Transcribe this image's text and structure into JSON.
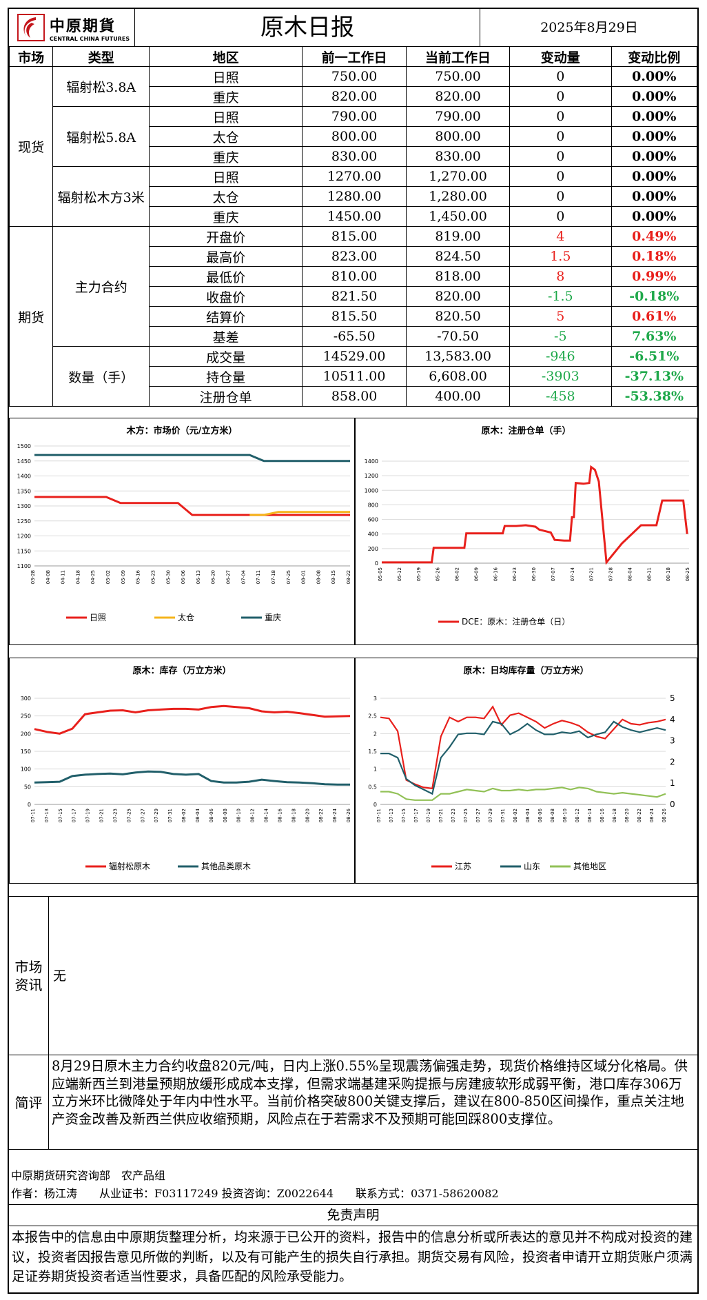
{
  "header": {
    "logo_cn": "中原期貨",
    "logo_en": "CENTRAL CHINA FUTURES",
    "title": "原木日报",
    "date": "2025年8月29日"
  },
  "columns": [
    "市场",
    "类型",
    "地区",
    "前一工作日",
    "当前工作日",
    "变动量",
    "变动比例"
  ],
  "spot": {
    "market": "现货",
    "groups": [
      {
        "type": "辐射松3.8A",
        "rows": [
          [
            "日照",
            "750.00",
            "750.00",
            "0",
            "0.00%"
          ],
          [
            "重庆",
            "820.00",
            "820.00",
            "0",
            "0.00%"
          ]
        ]
      },
      {
        "type": "辐射松5.8A",
        "rows": [
          [
            "日照",
            "790.00",
            "790.00",
            "0",
            "0.00%"
          ],
          [
            "太仓",
            "800.00",
            "800.00",
            "0",
            "0.00%"
          ],
          [
            "重庆",
            "830.00",
            "830.00",
            "0",
            "0.00%"
          ]
        ]
      },
      {
        "type": "辐射松木方3米",
        "rows": [
          [
            "日照",
            "1270.00",
            "1,270.00",
            "0",
            "0.00%"
          ],
          [
            "太仓",
            "1280.00",
            "1,280.00",
            "0",
            "0.00%"
          ],
          [
            "重庆",
            "1450.00",
            "1,450.00",
            "0",
            "0.00%"
          ]
        ]
      }
    ]
  },
  "futures": {
    "market": "期货",
    "groups": [
      {
        "type": "主力合约",
        "rows": [
          [
            "开盘价",
            "815.00",
            "819.00",
            "4",
            "0.49%"
          ],
          [
            "最高价",
            "823.00",
            "824.50",
            "1.5",
            "0.18%"
          ],
          [
            "最低价",
            "810.00",
            "818.00",
            "8",
            "0.99%"
          ],
          [
            "收盘价",
            "821.50",
            "820.00",
            "-1.5",
            "-0.18%"
          ],
          [
            "结算价",
            "815.50",
            "820.50",
            "5",
            "0.61%"
          ],
          [
            "基差",
            "-65.50",
            "-70.50",
            "-5",
            "7.63%"
          ]
        ]
      },
      {
        "type": "数量（手）",
        "rows": [
          [
            "成交量",
            "14529.00",
            "13,583.00",
            "-946",
            "-6.51%"
          ],
          [
            "持仓量",
            "10511.00",
            "6,608.00",
            "-3903",
            "-37.13%"
          ],
          [
            "注册仓单",
            "858.00",
            "400.00",
            "-458",
            "-53.38%"
          ]
        ]
      }
    ]
  },
  "colors": {
    "red": "#e8201c",
    "green": "#1ea84a",
    "teal": "#215f6a",
    "orange": "#f5b41c",
    "lightgreen": "#92c157"
  },
  "charts": [
    {
      "title": "木方：市场价（元/立方米）",
      "type": "line",
      "yticks": [
        "1500",
        "1450",
        "1400",
        "1350",
        "1300",
        "1250",
        "1200",
        "1150",
        "1100"
      ],
      "ylim": [
        1100,
        1500
      ],
      "xticks": [
        "03-28",
        "04-08",
        "04-11",
        "04-18",
        "04-25",
        "05-02",
        "05-09",
        "05-16",
        "05-23",
        "05-30",
        "06-06",
        "06-13",
        "06-20",
        "06-27",
        "07-04",
        "07-11",
        "07-18",
        "07-25",
        "08-01",
        "08-08",
        "08-15",
        "08-22"
      ],
      "series": [
        {
          "name": "日照",
          "color": "#e8201c",
          "values": [
            1330,
            1330,
            1330,
            1330,
            1330,
            1330,
            1310,
            1310,
            1310,
            1310,
            1310,
            1270,
            1270,
            1270,
            1270,
            1270,
            1270,
            1270,
            1270,
            1270,
            1270,
            1270,
            1270
          ]
        },
        {
          "name": "太仓",
          "color": "#f5b41c",
          "values": [
            null,
            null,
            null,
            null,
            null,
            null,
            null,
            null,
            null,
            null,
            null,
            null,
            null,
            null,
            null,
            1270,
            1270,
            1280,
            1280,
            1280,
            1280,
            1280,
            1280
          ]
        },
        {
          "name": "重庆",
          "color": "#215f6a",
          "values": [
            1470,
            1470,
            1470,
            1470,
            1470,
            1470,
            1470,
            1470,
            1470,
            1470,
            1470,
            1470,
            1470,
            1470,
            1470,
            1470,
            1450,
            1450,
            1450,
            1450,
            1450,
            1450,
            1450
          ]
        }
      ]
    },
    {
      "title": "原木：注册仓单（手）",
      "type": "line",
      "yticks": [
        "1400",
        "1200",
        "1000",
        "800",
        "600",
        "400",
        "200",
        "0"
      ],
      "ylim": [
        0,
        1400
      ],
      "xticks": [
        "05-05",
        "05-12",
        "05-19",
        "05-26",
        "06-02",
        "06-09",
        "06-16",
        "06-23",
        "06-30",
        "07-07",
        "07-14",
        "07-21",
        "07-28",
        "08-04",
        "08-11",
        "08-18",
        "08-25"
      ],
      "series": [
        {
          "name": "DCE：原木：注册仓单（日）",
          "color": "#e8201c",
          "values": [
            [
              0,
              10
            ],
            [
              1,
              10
            ],
            [
              2,
              10
            ],
            [
              2.6,
              10
            ],
            [
              2.7,
              210
            ],
            [
              3,
              210
            ],
            [
              4,
              210
            ],
            [
              4.3,
              210
            ],
            [
              4.4,
              410
            ],
            [
              5,
              410
            ],
            [
              6,
              410
            ],
            [
              6.3,
              410
            ],
            [
              6.4,
              510
            ],
            [
              7,
              510
            ],
            [
              7.5,
              520
            ],
            [
              8,
              500
            ],
            [
              8.2,
              460
            ],
            [
              8.8,
              420
            ],
            [
              9,
              320
            ],
            [
              9.5,
              310
            ],
            [
              9.8,
              310
            ],
            [
              9.9,
              630
            ],
            [
              10,
              630
            ],
            [
              10.1,
              1100
            ],
            [
              10.5,
              1090
            ],
            [
              10.8,
              1100
            ],
            [
              10.9,
              1320
            ],
            [
              11.1,
              1280
            ],
            [
              11.3,
              1120
            ],
            [
              11.7,
              10
            ],
            [
              12.5,
              270
            ],
            [
              13.5,
              520
            ],
            [
              14,
              520
            ],
            [
              14.3,
              520
            ],
            [
              14.6,
              860
            ],
            [
              15,
              860
            ],
            [
              15.7,
              860
            ],
            [
              15.9,
              400
            ]
          ]
        }
      ]
    },
    {
      "title": "原木：库存（万立方米）",
      "type": "line",
      "yticks": [
        "300",
        "250",
        "200",
        "150",
        "100",
        "50",
        "0"
      ],
      "ylim": [
        0,
        300
      ],
      "xticks": [
        "07-11",
        "07-13",
        "07-15",
        "07-17",
        "07-19",
        "07-21",
        "07-23",
        "07-25",
        "07-27",
        "07-29",
        "07-31",
        "08-02",
        "08-04",
        "08-06",
        "08-08",
        "08-10",
        "08-12",
        "08-14",
        "08-16",
        "08-18",
        "08-20",
        "08-22",
        "08-24",
        "08-26"
      ],
      "series": [
        {
          "name": "辐射松原木",
          "color": "#e8201c",
          "values": [
            213,
            205,
            200,
            214,
            255,
            260,
            265,
            266,
            260,
            266,
            268,
            270,
            270,
            268,
            275,
            278,
            275,
            272,
            263,
            260,
            262,
            258,
            253,
            248,
            249,
            250
          ]
        },
        {
          "name": "其他品类原木",
          "color": "#215f6a",
          "values": [
            62,
            63,
            64,
            80,
            84,
            86,
            87,
            85,
            90,
            93,
            92,
            86,
            84,
            86,
            66,
            62,
            62,
            64,
            70,
            66,
            63,
            62,
            60,
            57,
            56,
            56
          ]
        }
      ]
    },
    {
      "title": "原木：日均库存量（万立方米）",
      "type": "line",
      "yticks_left": [
        "3",
        "2.5",
        "2",
        "1.5",
        "1",
        "0.5",
        "0"
      ],
      "ylim_left": [
        0,
        3
      ],
      "yticks_right": [
        "5",
        "4",
        "3",
        "2",
        "1",
        "0"
      ],
      "ylim_right": [
        0,
        5
      ],
      "xticks": [
        "07-11",
        "07-13",
        "07-15",
        "07-17",
        "07-19",
        "07-21",
        "07-23",
        "07-25",
        "07-27",
        "07-29",
        "07-31",
        "08-02",
        "08-04",
        "08-06",
        "08-08",
        "08-10",
        "08-12",
        "08-14",
        "08-16",
        "08-18",
        "08-20",
        "08-22",
        "08-24",
        "08-26"
      ],
      "series": [
        {
          "name": "江苏",
          "color": "#e8201c",
          "axis": "right",
          "values": [
            4.1,
            4.05,
            3.45,
            1.15,
            0.95,
            0.8,
            0.75,
            3.2,
            4.1,
            3.9,
            4.1,
            4.1,
            4.05,
            4.6,
            3.75,
            4.2,
            4.3,
            4.1,
            3.9,
            3.6,
            3.8,
            3.95,
            3.85,
            3.7,
            3.4,
            3.2,
            3.1,
            3.55,
            4.0,
            3.8,
            3.75,
            3.85,
            3.9,
            4.0
          ]
        },
        {
          "name": "山东",
          "color": "#215f6a",
          "axis": "right",
          "values": [
            2.4,
            2.4,
            2.2,
            1.2,
            0.9,
            0.7,
            0.5,
            2.2,
            2.7,
            3.3,
            3.35,
            3.35,
            3.3,
            3.9,
            3.8,
            3.3,
            3.5,
            3.8,
            3.5,
            3.3,
            3.3,
            3.4,
            3.35,
            3.45,
            3.15,
            3.3,
            3.4,
            3.9,
            3.65,
            3.5,
            3.4,
            3.5,
            3.6,
            3.5
          ]
        },
        {
          "name": "其他地区",
          "color": "#92c157",
          "axis": "right",
          "values": [
            0.6,
            0.6,
            0.5,
            0.25,
            0.2,
            0.2,
            0.2,
            0.5,
            0.5,
            0.6,
            0.7,
            0.65,
            0.6,
            0.75,
            0.65,
            0.65,
            0.7,
            0.65,
            0.7,
            0.7,
            0.75,
            0.8,
            0.7,
            0.8,
            0.75,
            0.6,
            0.55,
            0.5,
            0.55,
            0.5,
            0.45,
            0.4,
            0.35,
            0.5
          ]
        }
      ]
    }
  ],
  "market_info": {
    "label": "市场资讯",
    "text": "无"
  },
  "comment": {
    "label": "简评",
    "text": "8月29日原木主力合约收盘820元/吨，日内上涨0.55%呈现震荡偏强走势，现货价格维持区域分化格局。供应端新西兰到港量预期放缓形成成本支撑，但需求端基建采购提振与房建疲软形成弱平衡，港口库存306万立方米环比微降处于年内中性水平。当前价格突破800关键支撑后，建议在800-850区间操作，重点关注地产资金改善及新西兰供应收缩预期，风险点在于若需求不及预期可能回踩800支撑位。"
  },
  "footer": {
    "dept": "中原期货研究咨询部　农产品组",
    "author": "作者：杨江涛　　从业证书：F03117249 投资咨询：Z0022644　　联系方式：0371-58620082"
  },
  "disclaimer": {
    "title": "免责声明",
    "text": "本报告中的信息由中原期货整理分析，均来源于已公开的资料，报告中的信息分析或所表达的意见并不构成对投资的建议，投资者因报告意见所做的判断，以及有可能产生的损失自行承担。期货交易有风险，投资者申请开立期货账户须满足证券期货投资者适当性要求，具备匹配的风险承受能力。"
  }
}
